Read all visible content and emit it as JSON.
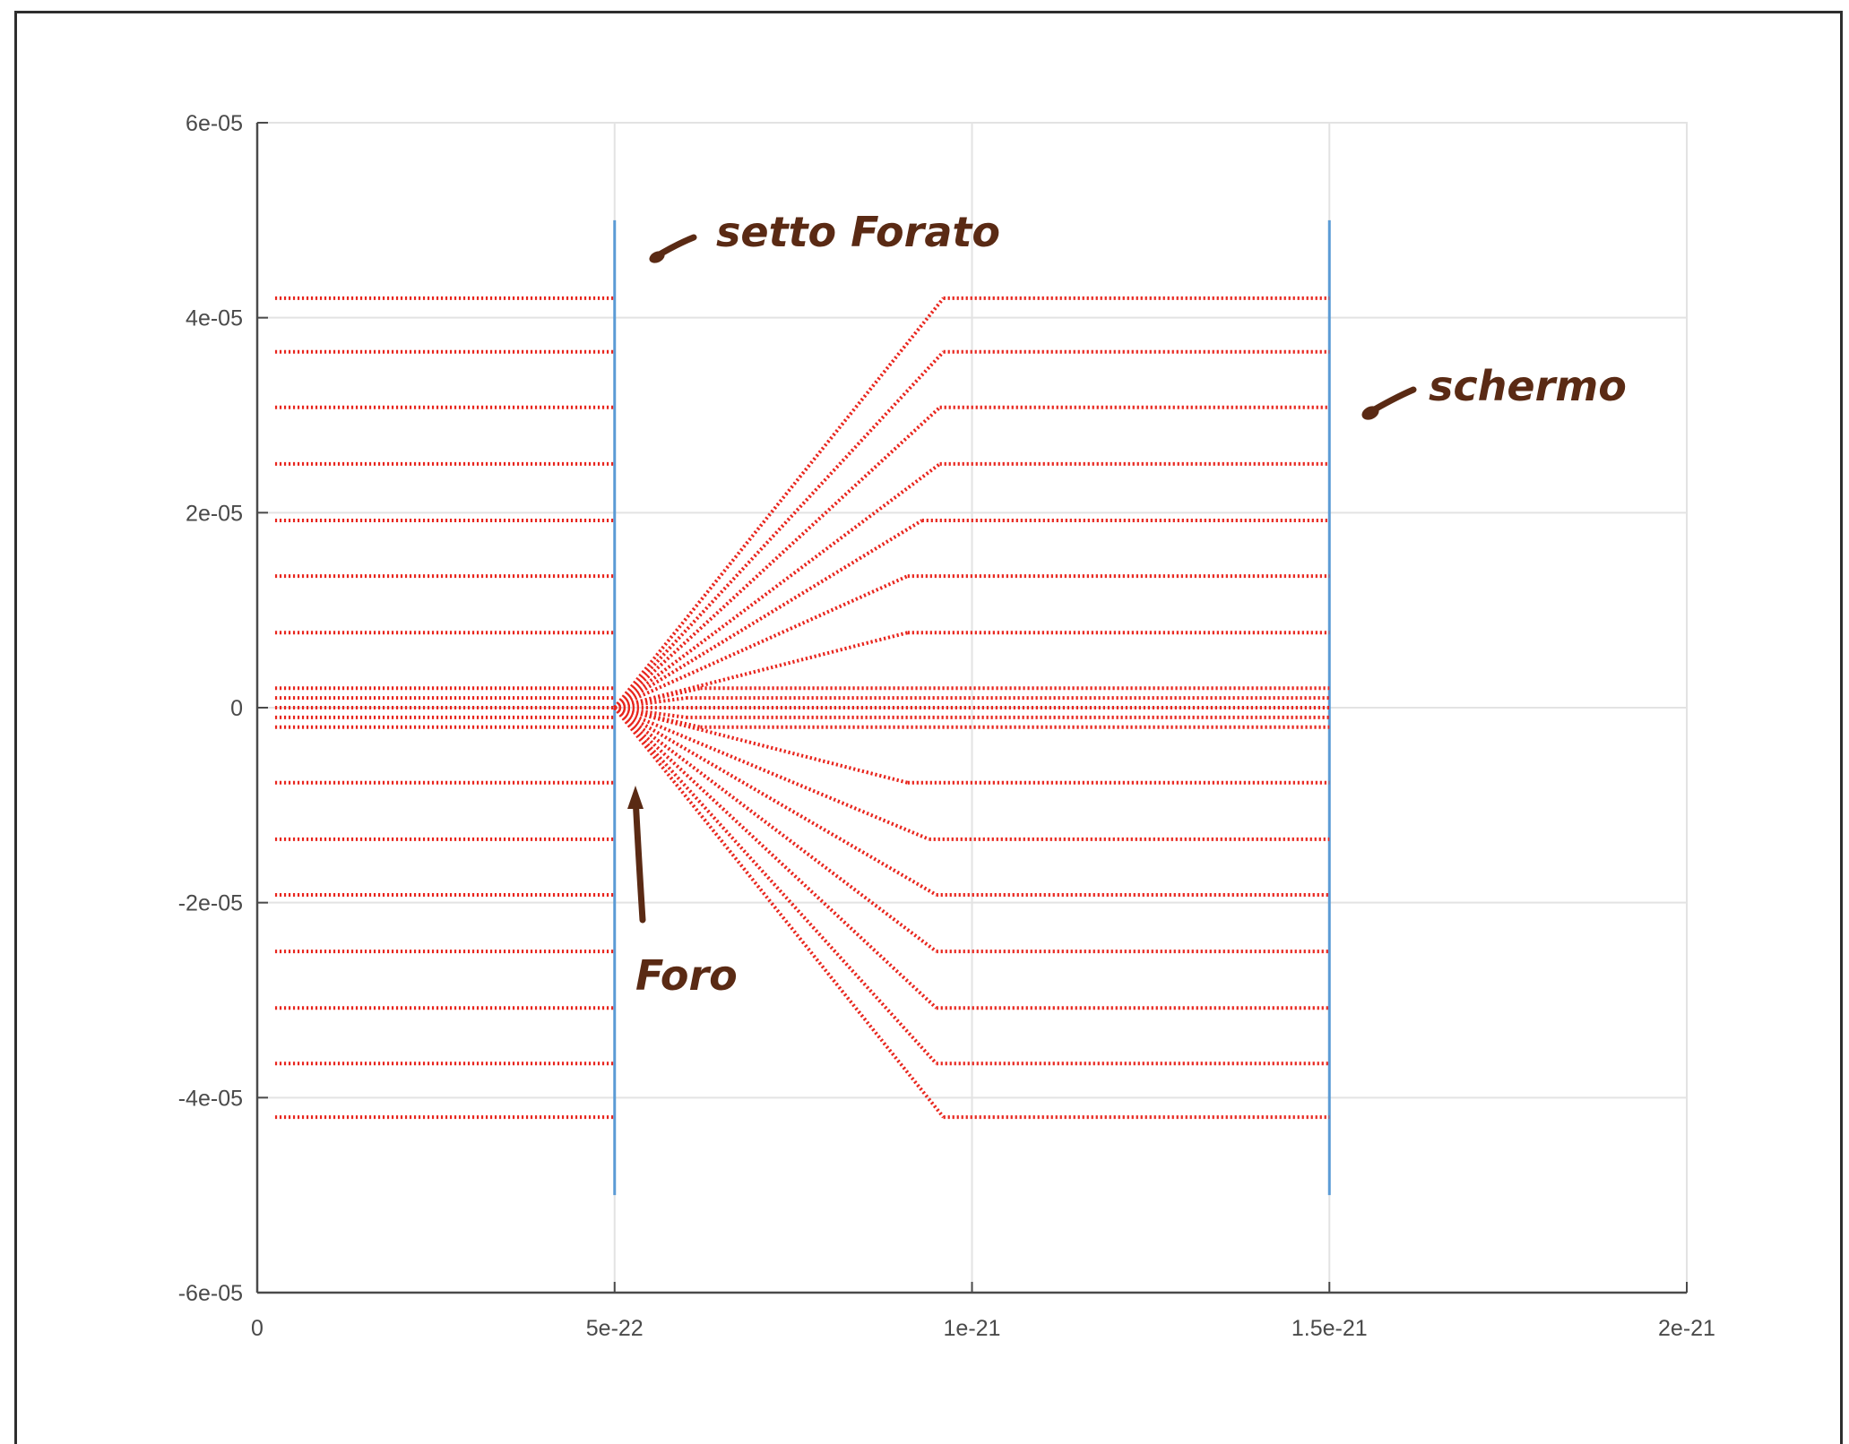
{
  "colors": {
    "ray": "#e8251d",
    "barrier": "#5b9bd5",
    "grid": "#e3e3e3",
    "axis": "#4a4a4a",
    "annotation": "#5a2a14"
  },
  "chart_data": {
    "type": "scatter",
    "title": "",
    "xlabel": "",
    "ylabel": "",
    "xlim": [
      0,
      2e-21
    ],
    "ylim": [
      -6e-05,
      6e-05
    ],
    "grid": true,
    "legend": "none",
    "x_ticks": [
      0,
      5e-22,
      1e-21,
      1.5e-21,
      2e-21
    ],
    "x_tick_labels": [
      "0",
      "5e-22",
      "1e-21",
      "1.5e-21",
      "2e-21"
    ],
    "y_ticks": [
      6e-05,
      4e-05,
      2e-05,
      0,
      -2e-05,
      -4e-05,
      -6e-05
    ],
    "y_tick_labels": [
      "6e-05",
      "4e-05",
      "2e-05",
      "0",
      "-2e-05",
      "-4e-05",
      "-6e-05"
    ],
    "ray_x_start": 2.5e-23,
    "ray_x_end": 1.5e-21,
    "barriers": [
      {
        "x": 5e-22,
        "y_range": [
          -5e-05,
          5e-05
        ]
      },
      {
        "x": 1.5e-21,
        "y_range": [
          -5e-05,
          5e-05
        ]
      }
    ],
    "hole": {
      "x": 5e-22,
      "y": 0
    },
    "rays": [
      {
        "y": 4.2e-05,
        "x_knee": 9.6e-22
      },
      {
        "y": 3.65e-05,
        "x_knee": 9.6e-22
      },
      {
        "y": 3.08e-05,
        "x_knee": 9.55e-22
      },
      {
        "y": 2.5e-05,
        "x_knee": 9.55e-22
      },
      {
        "y": 1.92e-05,
        "x_knee": 9.3e-22
      },
      {
        "y": 1.35e-05,
        "x_knee": 9.1e-22
      },
      {
        "y": 7.7e-06,
        "x_knee": 9.1e-22
      },
      {
        "y": 2e-06,
        "x_knee": 6.2e-22
      },
      {
        "y": 1e-06,
        "x_knee": 6e-22
      },
      {
        "y": 0,
        "x_knee": 5e-22
      },
      {
        "y": -1e-06,
        "x_knee": 6e-22
      },
      {
        "y": -2e-06,
        "x_knee": 6.2e-22
      },
      {
        "y": -7.7e-06,
        "x_knee": 9.1e-22
      },
      {
        "y": -1.35e-05,
        "x_knee": 9.4e-22
      },
      {
        "y": -1.92e-05,
        "x_knee": 9.5e-22
      },
      {
        "y": -2.5e-05,
        "x_knee": 9.5e-22
      },
      {
        "y": -3.08e-05,
        "x_knee": 9.5e-22
      },
      {
        "y": -3.65e-05,
        "x_knee": 9.5e-22
      },
      {
        "y": -4.2e-05,
        "x_knee": 9.6e-22
      }
    ],
    "annotations": [
      {
        "text": "setto Forato",
        "target_x": 5e-22,
        "target_y": 5e-05
      },
      {
        "text": "schermo",
        "target_x": 1.5e-21,
        "target_y": 3.1e-05
      },
      {
        "text": "Foro",
        "target_x": 5e-22,
        "target_y": -4e-06
      }
    ]
  }
}
